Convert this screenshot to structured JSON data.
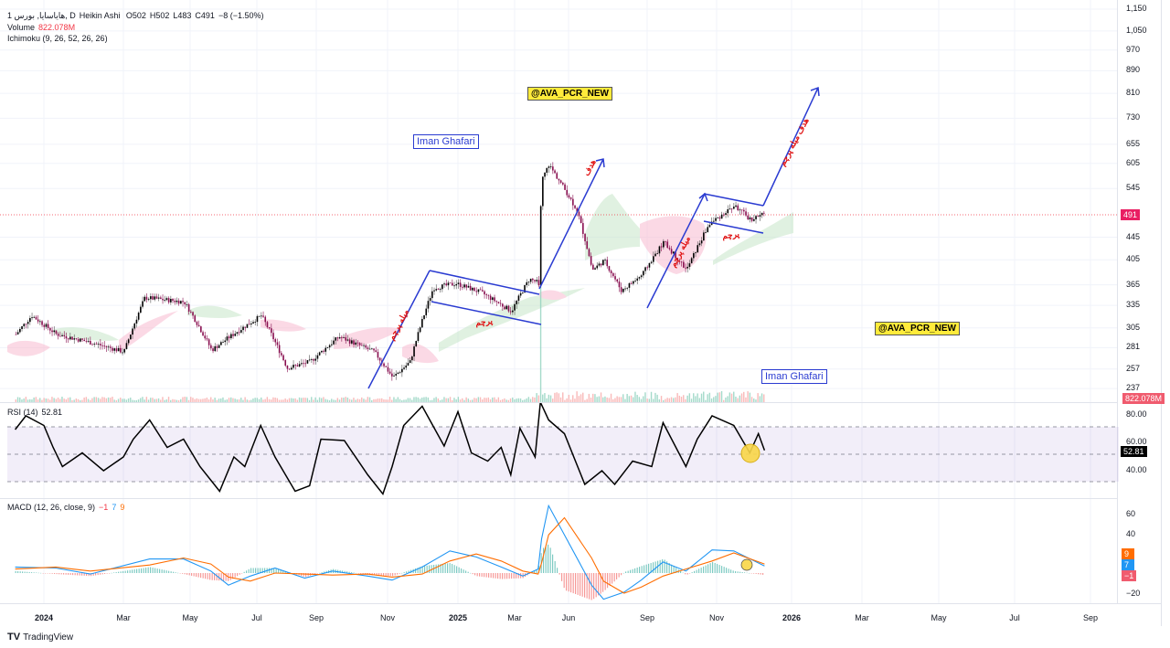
{
  "header": {
    "symbol": "1 هایاسایا, بورس, D",
    "chart_type": "Heikin Ashi",
    "open": "O502",
    "high": "H502",
    "low": "L483",
    "close": "C491",
    "change": "−8 (−1.50%)",
    "volume_label": "Volume",
    "volume_value": "822.078M",
    "ichimoku": "Ichimoku (9, 26, 52, 26, 26)"
  },
  "annotations": {
    "channel_tag_1": "@AVA_PCR_NEW",
    "channel_tag_2": "@AVA_PCR_NEW",
    "author_1": "Iman Ghafari",
    "author_2": "Iman Ghafari",
    "flag_1": "پرچم",
    "flag_2": "پرچم",
    "pole_1": "میله پرچم",
    "pole_2": "میله پرچم",
    "target_1": "هدف",
    "target_2": "هدف میله پرچم"
  },
  "price_axis": {
    "ticks": [
      "1,150",
      "1,050",
      "970",
      "890",
      "810",
      "730",
      "655",
      "605",
      "545",
      "445",
      "405",
      "365",
      "335",
      "305",
      "281",
      "257",
      "237"
    ],
    "last_price": "491",
    "volume_badge": "822.078M",
    "scale": "log"
  },
  "rsi": {
    "label": "RSI (14)",
    "value": "52.81",
    "ticks": [
      "80.00",
      "60.00",
      "40.00"
    ],
    "badge": "52.81"
  },
  "macd": {
    "label": "MACD (12, 26, close, 9)",
    "hist": "−1",
    "macd": "7",
    "signal": "9",
    "ticks": [
      "60",
      "40",
      "−20"
    ],
    "badge_signal": "9",
    "badge_macd": "7",
    "badge_hist": "−1"
  },
  "time_axis": {
    "ticks": [
      "2024",
      "Mar",
      "May",
      "Jul",
      "Sep",
      "Nov",
      "2025",
      "Mar",
      "Jun",
      "Sep",
      "Nov",
      "2026",
      "Mar",
      "May",
      "Jul",
      "Sep"
    ]
  },
  "footer": {
    "brand": "TradingView"
  },
  "colors": {
    "up": "#000000",
    "down": "#880e4f",
    "price_line": "#f23645",
    "drawing": "#2a3bd1",
    "macd": "#2196f3",
    "signal": "#ff6d00",
    "rsi_band": "#7e57c2",
    "cloud_bull": "#a5d6a7",
    "cloud_bear": "#f8bbd0"
  },
  "chart_data": {
    "type": "candlestick",
    "price_points": [
      [
        "2023-12-05",
        297
      ],
      [
        "2023-12-20",
        321
      ],
      [
        "2024-01-10",
        297
      ],
      [
        "2024-02-05",
        287
      ],
      [
        "2024-03-01",
        276
      ],
      [
        "2024-03-20",
        346
      ],
      [
        "2024-04-25",
        340
      ],
      [
        "2024-05-20",
        278
      ],
      [
        "2024-06-15",
        303
      ],
      [
        "2024-07-05",
        321
      ],
      [
        "2024-08-01",
        258
      ],
      [
        "2024-08-25",
        265
      ],
      [
        "2024-09-20",
        294
      ],
      [
        "2024-10-20",
        276
      ],
      [
        "2024-11-05",
        248
      ],
      [
        "2024-11-20",
        265
      ],
      [
        "2024-12-10",
        360
      ],
      [
        "2024-12-30",
        367
      ],
      [
        "2025-01-25",
        353
      ],
      [
        "2025-02-25",
        327
      ],
      [
        "2025-03-25",
        374
      ],
      [
        "2025-04-12",
        367
      ],
      [
        "2025-04-14",
        558
      ],
      [
        "2025-04-27",
        602
      ],
      [
        "2025-06-10",
        498
      ],
      [
        "2025-06-28",
        388
      ],
      [
        "2025-07-12",
        404
      ],
      [
        "2025-08-01",
        356
      ],
      [
        "2025-08-25",
        380
      ],
      [
        "2025-09-15",
        436
      ],
      [
        "2025-10-05",
        388
      ],
      [
        "2025-10-25",
        470
      ],
      [
        "2025-11-15",
        507
      ],
      [
        "2025-11-28",
        479
      ],
      [
        "2025-12-10",
        491
      ]
    ],
    "rsi_points": [
      [
        "2023-12-05",
        68
      ],
      [
        "2023-12-15",
        78
      ],
      [
        "2024-01-01",
        71
      ],
      [
        "2024-01-08",
        55
      ],
      [
        "2024-01-15",
        41
      ],
      [
        "2024-01-30",
        51
      ],
      [
        "2024-02-15",
        38
      ],
      [
        "2024-03-01",
        48
      ],
      [
        "2024-03-10",
        61
      ],
      [
        "2024-03-25",
        75
      ],
      [
        "2024-04-10",
        55
      ],
      [
        "2024-04-25",
        61
      ],
      [
        "2024-05-10",
        41
      ],
      [
        "2024-05-28",
        23
      ],
      [
        "2024-06-10",
        48
      ],
      [
        "2024-06-20",
        41
      ],
      [
        "2024-07-05",
        71
      ],
      [
        "2024-07-20",
        48
      ],
      [
        "2024-08-10",
        23
      ],
      [
        "2024-08-25",
        27
      ],
      [
        "2024-09-05",
        61
      ],
      [
        "2024-09-25",
        60
      ],
      [
        "2024-10-15",
        35
      ],
      [
        "2024-10-28",
        21
      ],
      [
        "2024-11-05",
        41
      ],
      [
        "2024-11-15",
        71
      ],
      [
        "2024-12-01",
        85
      ],
      [
        "2024-12-20",
        56
      ],
      [
        "2025-01-01",
        81
      ],
      [
        "2025-01-15",
        51
      ],
      [
        "2025-02-01",
        45
      ],
      [
        "2025-02-15",
        55
      ],
      [
        "2025-02-25",
        35
      ],
      [
        "2025-03-10",
        69
      ],
      [
        "2025-04-05",
        48
      ],
      [
        "2025-04-14",
        88
      ],
      [
        "2025-04-28",
        75
      ],
      [
        "2025-05-25",
        65
      ],
      [
        "2025-06-20",
        28
      ],
      [
        "2025-07-10",
        38
      ],
      [
        "2025-07-25",
        28
      ],
      [
        "2025-08-15",
        45
      ],
      [
        "2025-09-05",
        41
      ],
      [
        "2025-09-15",
        73
      ],
      [
        "2025-10-05",
        41
      ],
      [
        "2025-10-15",
        61
      ],
      [
        "2025-10-28",
        78
      ],
      [
        "2025-11-15",
        71
      ],
      [
        "2025-11-28",
        51
      ],
      [
        "2025-12-05",
        65
      ],
      [
        "2025-12-10",
        52.81
      ]
    ],
    "rsi_bands": [
      70,
      50,
      30
    ],
    "macd_points": [
      [
        "2023-12-05",
        6,
        4
      ],
      [
        "2024-01-10",
        5,
        6
      ],
      [
        "2024-02-05",
        -1,
        2
      ],
      [
        "2024-03-25",
        14,
        8
      ],
      [
        "2024-04-25",
        14,
        15
      ],
      [
        "2024-05-20",
        2,
        9
      ],
      [
        "2024-06-05",
        -12,
        -4
      ],
      [
        "2024-06-25",
        -3,
        -8
      ],
      [
        "2024-07-20",
        5,
        0
      ],
      [
        "2024-08-20",
        -5,
        -1
      ],
      [
        "2024-09-15",
        2,
        -2
      ],
      [
        "2024-10-15",
        -3,
        -1
      ],
      [
        "2024-11-05",
        -7,
        -4
      ],
      [
        "2024-12-01",
        6,
        -1
      ],
      [
        "2024-12-25",
        22,
        12
      ],
      [
        "2025-01-20",
        16,
        19
      ],
      [
        "2025-02-15",
        6,
        12
      ],
      [
        "2025-03-15",
        -3,
        2
      ],
      [
        "2025-04-10",
        4,
        -1
      ],
      [
        "2025-04-16",
        34,
        10
      ],
      [
        "2025-04-28",
        67,
        38
      ],
      [
        "2025-05-25",
        38,
        55
      ],
      [
        "2025-06-28",
        -12,
        15
      ],
      [
        "2025-07-12",
        -26,
        -8
      ],
      [
        "2025-08-05",
        -19,
        -20
      ],
      [
        "2025-08-25",
        -7,
        -14
      ],
      [
        "2025-09-15",
        11,
        -3
      ],
      [
        "2025-10-05",
        2,
        4
      ],
      [
        "2025-10-28",
        23,
        12
      ],
      [
        "2025-11-15",
        22,
        20
      ],
      [
        "2025-12-10",
        7,
        9
      ]
    ],
    "macd_ylim": [
      -20,
      60
    ],
    "rsi_ylim": [
      20,
      90
    ],
    "volume_spike_date": "2025-04-14",
    "grid": true
  }
}
